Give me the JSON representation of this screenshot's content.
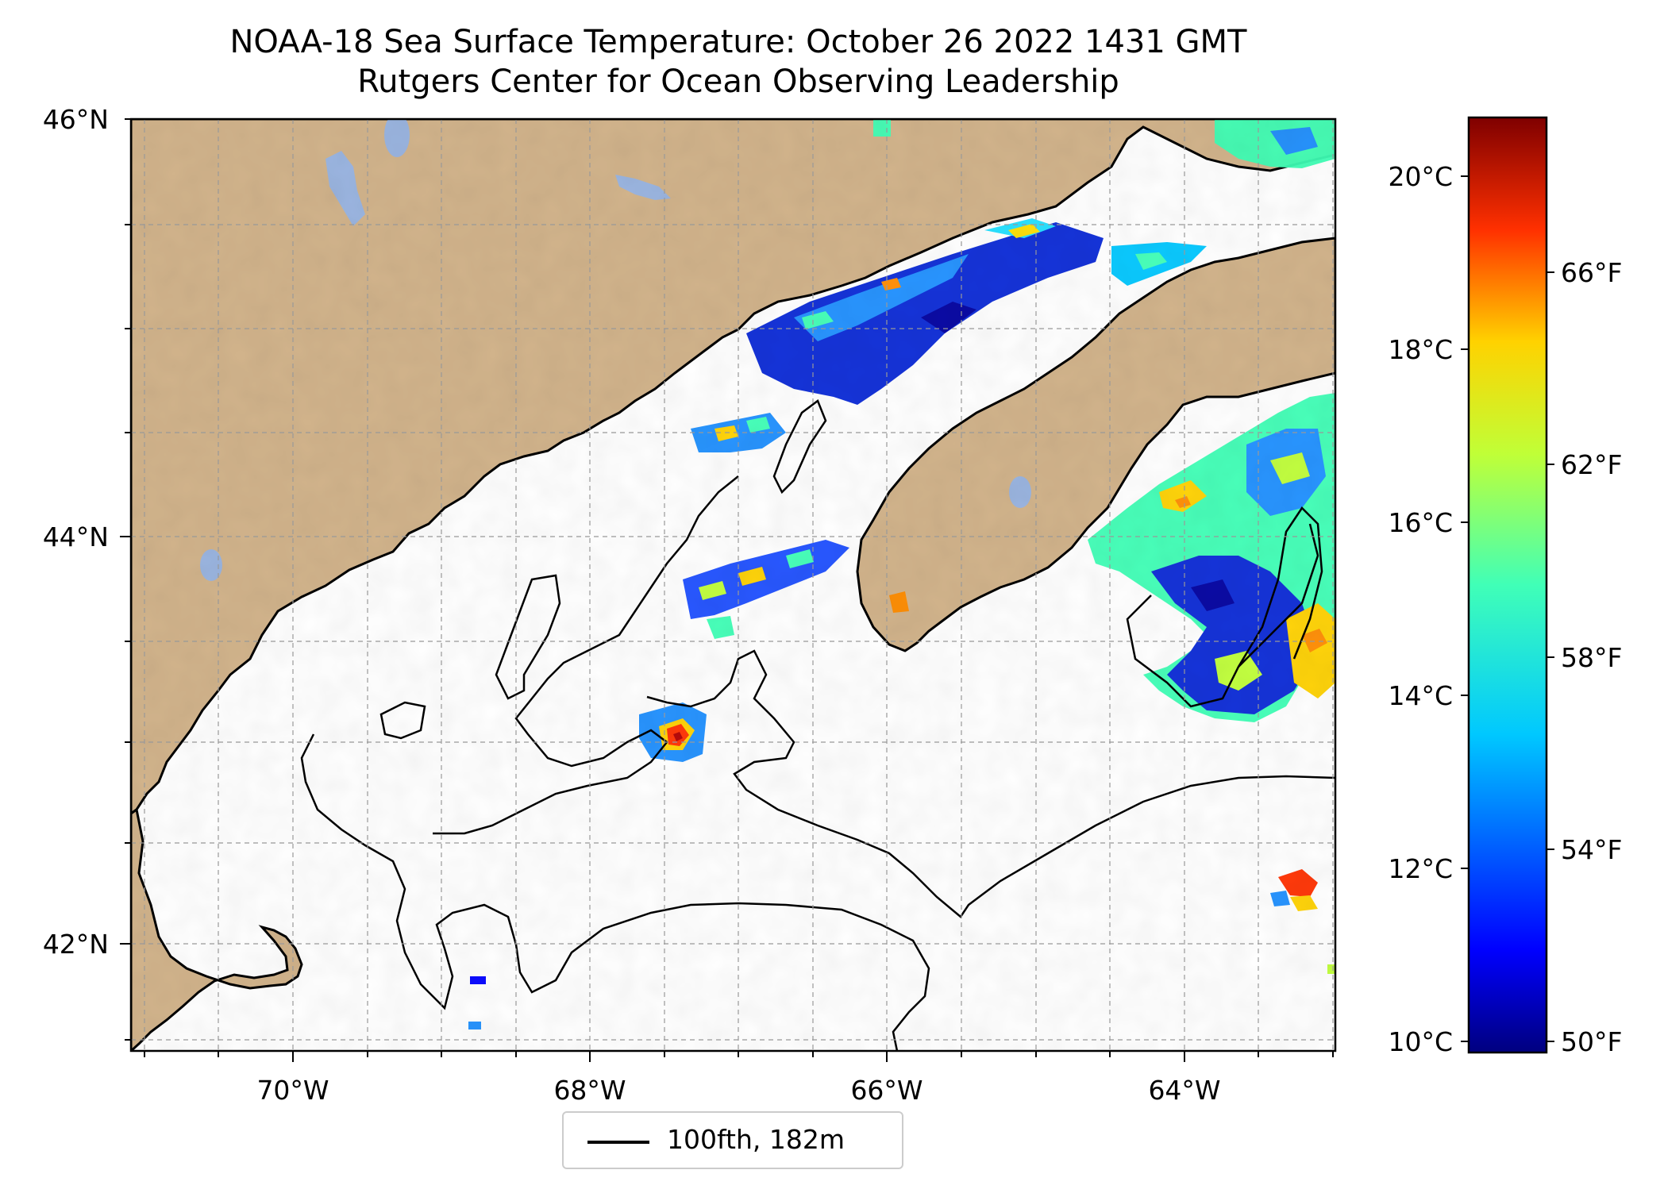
{
  "title_line1": "NOAA-18 Sea Surface Temperature: October 26 2022 1431 GMT",
  "title_line2": "Rutgers Center for Ocean Observing Leadership",
  "map": {
    "lon_range": [
      -71.1,
      -63.0
    ],
    "lat_range": [
      41.5,
      46.0
    ],
    "lon_ticks": [
      {
        "value": -70,
        "label": "70°W"
      },
      {
        "value": -68,
        "label": "68°W"
      },
      {
        "value": -66,
        "label": "66°W"
      },
      {
        "value": -64,
        "label": "64°W"
      }
    ],
    "lat_ticks": [
      {
        "value": 46,
        "label": "46°N"
      },
      {
        "value": 44,
        "label": "44°N"
      },
      {
        "value": 42,
        "label": "42°N"
      }
    ],
    "land_color": "#d2b48c",
    "lake_color": "#9bb5e0",
    "grid": true
  },
  "colorbar": {
    "colormap": "jet",
    "celsius_ticks": [
      "20°C",
      "18°C",
      "16°C",
      "14°C",
      "12°C",
      "10°C"
    ],
    "fahrenheit_ticks": [
      "66°F",
      "62°F",
      "58°F",
      "54°F",
      "50°F"
    ]
  },
  "legend": {
    "label": "100fth, 182m"
  }
}
